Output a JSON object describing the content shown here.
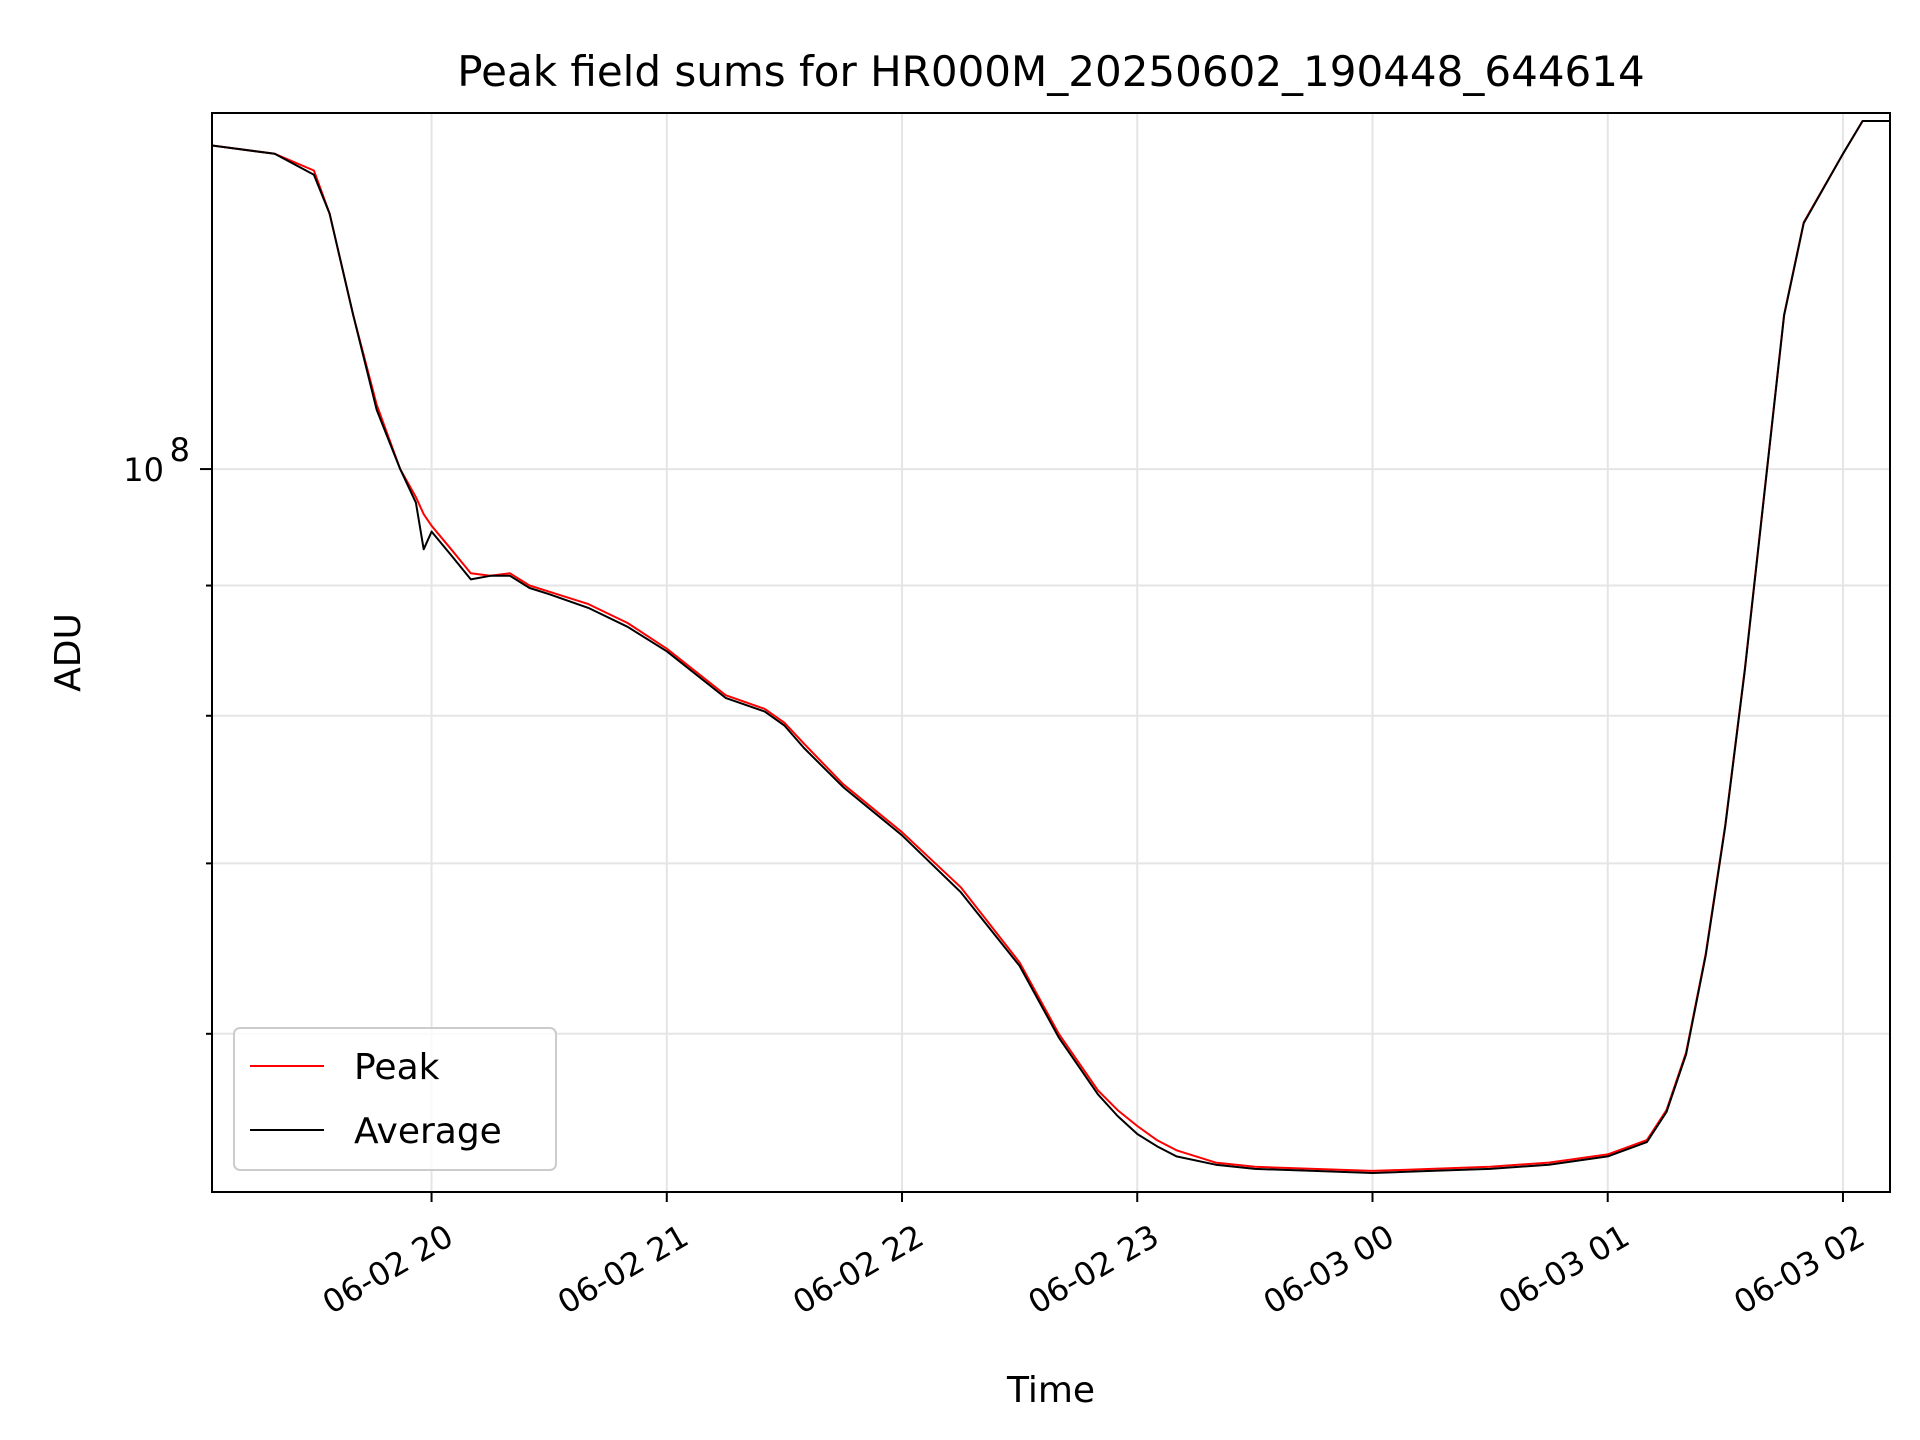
{
  "chart_data": {
    "type": "line",
    "title": "Peak field sums for HR000M_20250602_190448_644614",
    "xlabel": "Time",
    "ylabel": "ADU",
    "y_scale": "log",
    "grid": true,
    "legend_position": "lower-left",
    "x_range": [
      "06-02 19:04",
      "06-03 02:12"
    ],
    "ylim": [
      52000000,
      138000000
    ],
    "x_ticks": [
      "06-02 20",
      "06-02 21",
      "06-02 22",
      "06-02 23",
      "06-03 00",
      "06-03 01",
      "06-03 02"
    ],
    "y_major_ticks": [
      {
        "value": 100000000,
        "base": "10",
        "exp": "8"
      }
    ],
    "y_minor_ticks": [
      60000000,
      70000000,
      80000000,
      90000000,
      200000000
    ],
    "x": [
      "06-02 19:04",
      "06-02 19:20",
      "06-02 19:30",
      "06-02 19:34",
      "06-02 19:40",
      "06-02 19:46",
      "06-02 19:52",
      "06-02 19:56",
      "06-02 19:58",
      "06-02 20:00",
      "06-02 20:05",
      "06-02 20:10",
      "06-02 20:15",
      "06-02 20:20",
      "06-02 20:25",
      "06-02 20:30",
      "06-02 20:40",
      "06-02 20:50",
      "06-02 21:00",
      "06-02 21:15",
      "06-02 21:25",
      "06-02 21:30",
      "06-02 21:35",
      "06-02 21:45",
      "06-02 22:00",
      "06-02 22:15",
      "06-02 22:30",
      "06-02 22:40",
      "06-02 22:50",
      "06-02 22:55",
      "06-02 23:00",
      "06-02 23:05",
      "06-02 23:10",
      "06-02 23:20",
      "06-02 23:30",
      "06-02 23:45",
      "06-03 00:00",
      "06-03 00:15",
      "06-03 00:30",
      "06-03 00:45",
      "06-03 01:00",
      "06-03 01:10",
      "06-03 01:15",
      "06-03 01:20",
      "06-03 01:25",
      "06-03 01:30",
      "06-03 01:35",
      "06-03 01:40",
      "06-03 01:45",
      "06-03 01:50",
      "06-03 02:00",
      "06-03 02:05",
      "06-03 02:12"
    ],
    "series": [
      {
        "name": "Peak",
        "color": "#ff0000",
        "values": [
          134000000,
          133000000,
          131000000,
          126000000,
          115000000,
          106000000,
          100000000,
          97500000,
          96000000,
          95000000,
          93000000,
          91000000,
          90800000,
          91000000,
          90000000,
          89500000,
          88500000,
          87000000,
          85000000,
          81500000,
          80500000,
          79500000,
          78000000,
          75200000,
          72000000,
          68500000,
          64000000,
          60000000,
          57000000,
          56000000,
          55200000,
          54500000,
          54000000,
          53400000,
          53200000,
          53100000,
          53000000,
          53100000,
          53200000,
          53400000,
          53800000,
          54500000,
          56000000,
          59000000,
          64500000,
          72500000,
          83500000,
          98000000,
          115000000,
          125000000,
          133000000,
          137000000,
          137000000
        ]
      },
      {
        "name": "Average",
        "color": "#000000",
        "values": [
          134000000,
          133000000,
          130500000,
          126000000,
          115000000,
          105500000,
          100000000,
          97000000,
          93000000,
          94500000,
          92500000,
          90500000,
          90800000,
          90800000,
          89800000,
          89300000,
          88200000,
          86700000,
          84800000,
          81300000,
          80300000,
          79300000,
          77700000,
          75000000,
          71800000,
          68200000,
          63800000,
          59800000,
          56800000,
          55700000,
          54800000,
          54200000,
          53700000,
          53300000,
          53100000,
          53000000,
          52900000,
          53000000,
          53100000,
          53300000,
          53700000,
          54400000,
          55900000,
          58900000,
          64400000,
          72400000,
          83400000,
          97900000,
          114900000,
          124900000,
          133000000,
          137000000,
          137000000
        ]
      }
    ]
  }
}
